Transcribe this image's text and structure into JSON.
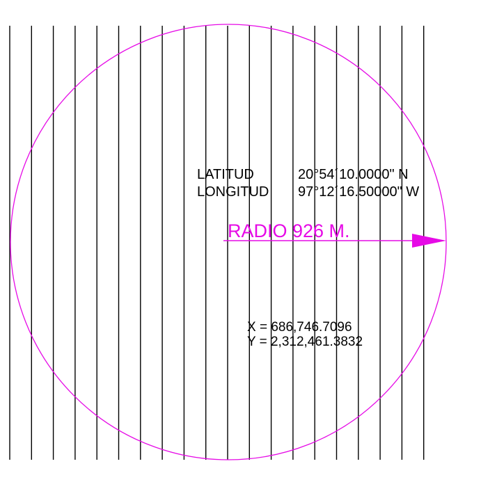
{
  "colors": {
    "background": "#ffffff",
    "circle": "#e60ae6",
    "hatch": "#000000",
    "text": "#000000",
    "radius": "#e60ae6"
  },
  "hatch": {
    "count": 20
  },
  "coordinates": {
    "latitude_label": "LATITUD",
    "latitude_value": "20°54´10.0000\" N",
    "longitude_label": "LONGITUD",
    "longitude_value": "97°12´16.50000\" W"
  },
  "radius": {
    "label": "RADIO 926 M."
  },
  "utm": {
    "x": "X = 686,746.7096",
    "y": "Y = 2,312,461.3832"
  }
}
